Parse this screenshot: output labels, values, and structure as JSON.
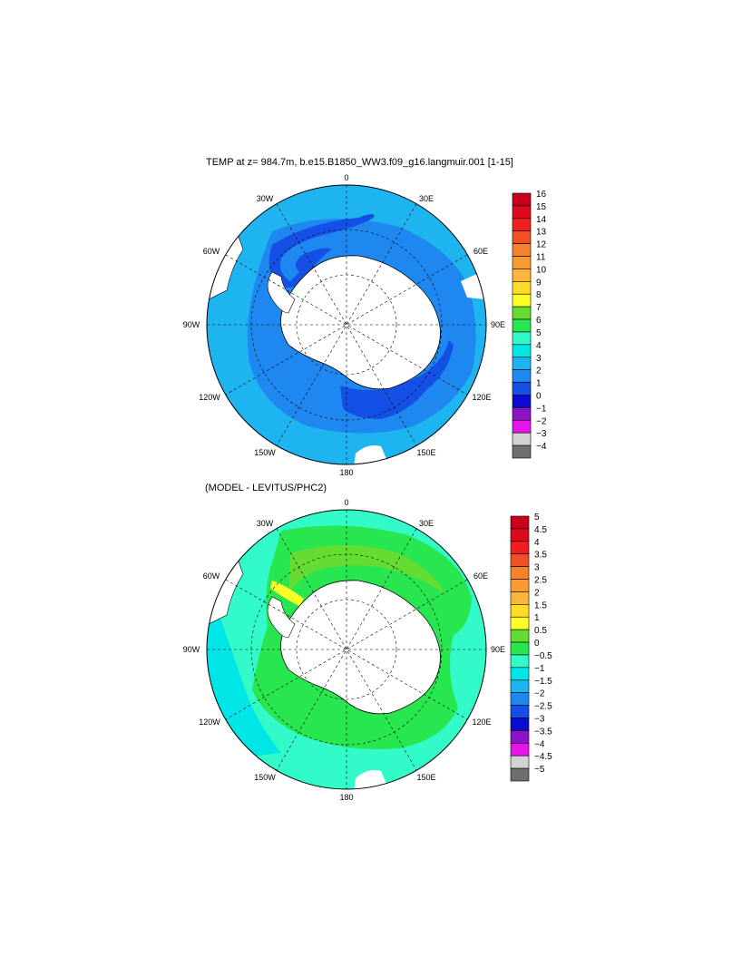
{
  "panel_top": {
    "title": "TEMP at z= 984.7m, b.e15.B1850_WW3.f09_g16.langmuir.001 [1-15]",
    "lon_labels": {
      "n": "0",
      "ne": "30E",
      "ene": "60E",
      "e": "90E",
      "ese": "120E",
      "se": "150E",
      "s": "180",
      "sw": "150W",
      "wsw": "120W",
      "w": "90W",
      "wnw": "60W",
      "nw": "30W"
    },
    "colorbar": {
      "labels": [
        "16",
        "15",
        "14",
        "13",
        "12",
        "11",
        "10",
        "9",
        "8",
        "7",
        "6",
        "5",
        "4",
        "3",
        "2",
        "1",
        "0",
        "−1",
        "−2",
        "−3",
        "−4"
      ],
      "colors": [
        "#c8001e",
        "#dc0a1e",
        "#f01e1e",
        "#f05028",
        "#f5822d",
        "#fa9b32",
        "#ffb43c",
        "#ffdc28",
        "#ffff28",
        "#64dc32",
        "#28e650",
        "#32fac8",
        "#00e6e6",
        "#1eb4f0",
        "#1e87f0",
        "#1450e6",
        "#0a0ad2",
        "#8c14c8",
        "#e614e6",
        "#d2d2d2",
        "#6e6e6e"
      ]
    }
  },
  "panel_bottom": {
    "title": "(MODEL - LEVITUS/PHC2)",
    "lon_labels": {
      "n": "0",
      "ne": "30E",
      "ene": "60E",
      "e": "90E",
      "ese": "120E",
      "se": "150E",
      "s": "180",
      "sw": "150W",
      "wsw": "120W",
      "w": "90W",
      "wnw": "60W",
      "nw": "30W"
    },
    "colorbar": {
      "labels": [
        "5",
        "4.5",
        "4",
        "3.5",
        "3",
        "2.5",
        "2",
        "1.5",
        "1",
        "0.5",
        "0",
        "−0.5",
        "−1",
        "−1.5",
        "−2",
        "−2.5",
        "−3",
        "−3.5",
        "−4",
        "−4.5",
        "−5"
      ],
      "colors": [
        "#c8001e",
        "#dc0a1e",
        "#f01e1e",
        "#f05028",
        "#f5822d",
        "#fa9b32",
        "#ffb43c",
        "#ffdc28",
        "#ffff28",
        "#64dc32",
        "#28e650",
        "#32fac8",
        "#00e6e6",
        "#1eb4f0",
        "#1e87f0",
        "#1450e6",
        "#0a0ad2",
        "#8c14c8",
        "#e614e6",
        "#d2d2d2",
        "#6e6e6e"
      ]
    }
  }
}
